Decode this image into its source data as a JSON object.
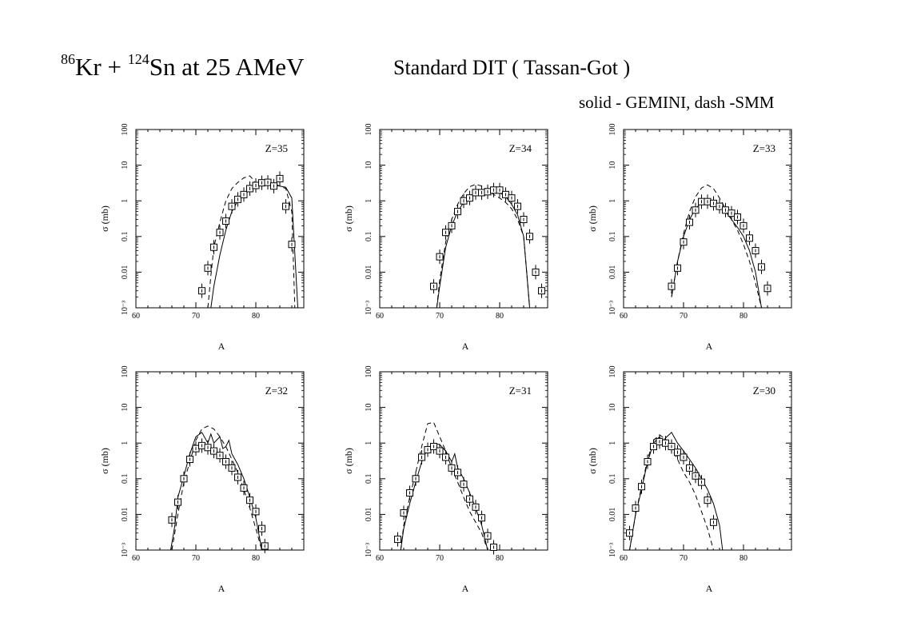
{
  "header": {
    "title_nuc1_mass": "86",
    "title_nuc1": "Kr + ",
    "title_nuc2_mass": "124",
    "title_rest": "Sn at 25 AMeV",
    "subtitle": "Standard DIT ( Tassan-Got )",
    "legend_note": "solid - GEMINI, dash -SMM"
  },
  "chart_data": [
    {
      "type": "line",
      "label": "Z=35",
      "xlabel": "A",
      "ylabel": "σ (mb)",
      "xlim": [
        60,
        88
      ],
      "ylim": [
        0.001,
        100
      ],
      "yscale": "log",
      "x_ticks": [
        "60",
        "70",
        "80"
      ],
      "y_ticks": [
        "10⁻³",
        "0.01",
        "0.1",
        "1",
        "10",
        "100"
      ],
      "markers": [
        [
          71,
          0.003
        ],
        [
          72,
          0.013
        ],
        [
          73,
          0.05
        ],
        [
          74,
          0.13
        ],
        [
          75,
          0.27
        ],
        [
          76,
          0.7
        ],
        [
          77,
          1.1
        ],
        [
          78,
          1.5
        ],
        [
          79,
          2.2
        ],
        [
          80,
          2.7
        ],
        [
          81,
          3.2
        ],
        [
          82,
          3.3
        ],
        [
          83,
          2.6
        ],
        [
          84,
          4.2
        ],
        [
          85,
          0.7
        ],
        [
          86,
          0.06
        ]
      ],
      "solid": [
        [
          72.5,
          0.001
        ],
        [
          73,
          0.004
        ],
        [
          74,
          0.03
        ],
        [
          75,
          0.15
        ],
        [
          76,
          0.5
        ],
        [
          77,
          1.0
        ],
        [
          78,
          1.5
        ],
        [
          79,
          2.0
        ],
        [
          80,
          2.5
        ],
        [
          81,
          2.8
        ],
        [
          82,
          2.9
        ],
        [
          83,
          2.7
        ],
        [
          84,
          2.6
        ],
        [
          85,
          2.4
        ],
        [
          86,
          1.2
        ],
        [
          87,
          0.001
        ]
      ],
      "dash": [
        [
          72,
          0.001
        ],
        [
          72.5,
          0.008
        ],
        [
          73,
          0.05
        ],
        [
          74,
          0.25
        ],
        [
          75,
          1.0
        ],
        [
          76,
          2.2
        ],
        [
          77,
          3.3
        ],
        [
          78,
          4.4
        ],
        [
          79,
          5.0
        ],
        [
          79.5,
          4.0
        ],
        [
          80,
          3.0
        ],
        [
          81,
          2.6
        ],
        [
          82,
          3.0
        ],
        [
          83,
          3.0
        ],
        [
          84,
          2.6
        ],
        [
          85,
          2.2
        ],
        [
          86,
          0.5
        ],
        [
          86.5,
          0.001
        ]
      ]
    },
    {
      "type": "line",
      "label": "Z=34",
      "xlabel": "A",
      "ylabel": "σ (mb)",
      "xlim": [
        60,
        88
      ],
      "ylim": [
        0.001,
        100
      ],
      "yscale": "log",
      "x_ticks": [
        "60",
        "70",
        "80"
      ],
      "y_ticks": [
        "10⁻³",
        "0.01",
        "0.1",
        "1",
        "10",
        "100"
      ],
      "markers": [
        [
          69,
          0.004
        ],
        [
          70,
          0.027
        ],
        [
          71,
          0.13
        ],
        [
          72,
          0.2
        ],
        [
          73,
          0.5
        ],
        [
          74,
          1.0
        ],
        [
          75,
          1.2
        ],
        [
          76,
          1.7
        ],
        [
          77,
          1.7
        ],
        [
          78,
          1.8
        ],
        [
          79,
          2.0
        ],
        [
          80,
          2.0
        ],
        [
          81,
          1.5
        ],
        [
          82,
          1.2
        ],
        [
          83,
          0.7
        ],
        [
          84,
          0.3
        ],
        [
          85,
          0.1
        ],
        [
          86,
          0.01
        ],
        [
          87,
          0.003
        ]
      ],
      "solid": [
        [
          69.5,
          0.001
        ],
        [
          70,
          0.004
        ],
        [
          71,
          0.05
        ],
        [
          72,
          0.2
        ],
        [
          73,
          0.5
        ],
        [
          74,
          0.9
        ],
        [
          75,
          1.3
        ],
        [
          76,
          1.5
        ],
        [
          77,
          1.7
        ],
        [
          78,
          1.9
        ],
        [
          79,
          1.9
        ],
        [
          80,
          1.7
        ],
        [
          81,
          1.3
        ],
        [
          82,
          0.8
        ],
        [
          83,
          0.4
        ],
        [
          84,
          0.1
        ],
        [
          84.5,
          0.01
        ],
        [
          85,
          0.001
        ]
      ],
      "dash": [
        [
          69.5,
          0.001
        ],
        [
          70,
          0.006
        ],
        [
          71,
          0.07
        ],
        [
          72,
          0.3
        ],
        [
          73,
          0.8
        ],
        [
          74,
          1.6
        ],
        [
          75,
          2.5
        ],
        [
          76,
          2.9
        ],
        [
          77,
          2.6
        ],
        [
          78,
          2.0
        ],
        [
          79,
          1.5
        ],
        [
          80,
          1.2
        ],
        [
          81,
          0.9
        ],
        [
          82,
          0.6
        ],
        [
          83,
          0.3
        ],
        [
          84,
          0.1
        ],
        [
          84.5,
          0.01
        ],
        [
          85,
          0.001
        ]
      ]
    },
    {
      "type": "line",
      "label": "Z=33",
      "xlabel": "A",
      "ylabel": "σ (mb)",
      "xlim": [
        60,
        88
      ],
      "ylim": [
        0.001,
        100
      ],
      "yscale": "log",
      "x_ticks": [
        "60",
        "70",
        "80"
      ],
      "y_ticks": [
        "10⁻³",
        "0.01",
        "0.1",
        "1",
        "10",
        "100"
      ],
      "markers": [
        [
          68,
          0.004
        ],
        [
          69,
          0.013
        ],
        [
          70,
          0.07
        ],
        [
          71,
          0.25
        ],
        [
          72,
          0.55
        ],
        [
          73,
          0.95
        ],
        [
          74,
          0.95
        ],
        [
          75,
          0.85
        ],
        [
          76,
          0.7
        ],
        [
          77,
          0.55
        ],
        [
          78,
          0.45
        ],
        [
          79,
          0.35
        ],
        [
          80,
          0.2
        ],
        [
          81,
          0.09
        ],
        [
          82,
          0.04
        ],
        [
          83,
          0.014
        ],
        [
          84,
          0.0035
        ]
      ],
      "solid": [
        [
          68,
          0.002
        ],
        [
          69,
          0.02
        ],
        [
          70,
          0.1
        ],
        [
          71,
          0.3
        ],
        [
          72,
          0.6
        ],
        [
          73,
          0.9
        ],
        [
          74,
          1.0
        ],
        [
          75,
          0.9
        ],
        [
          76,
          0.7
        ],
        [
          77,
          0.5
        ],
        [
          78,
          0.3
        ],
        [
          79,
          0.18
        ],
        [
          80,
          0.1
        ],
        [
          81,
          0.04
        ],
        [
          82,
          0.01
        ],
        [
          83,
          0.001
        ]
      ],
      "dash": [
        [
          68,
          0.002
        ],
        [
          69,
          0.02
        ],
        [
          70,
          0.12
        ],
        [
          71,
          0.5
        ],
        [
          72,
          1.3
        ],
        [
          73,
          2.3
        ],
        [
          74,
          2.8
        ],
        [
          75,
          2.2
        ],
        [
          76,
          1.2
        ],
        [
          77,
          0.6
        ],
        [
          78,
          0.3
        ],
        [
          79,
          0.15
        ],
        [
          80,
          0.06
        ],
        [
          81,
          0.02
        ],
        [
          82,
          0.005
        ],
        [
          83,
          0.001
        ]
      ]
    },
    {
      "type": "line",
      "label": "Z=32",
      "xlabel": "A",
      "ylabel": "σ (mb)",
      "xlim": [
        60,
        88
      ],
      "ylim": [
        0.001,
        100
      ],
      "yscale": "log",
      "x_ticks": [
        "60",
        "70",
        "80"
      ],
      "y_ticks": [
        "10⁻³",
        "0.01",
        "0.1",
        "1",
        "10",
        "100"
      ],
      "markers": [
        [
          66,
          0.007
        ],
        [
          67,
          0.022
        ],
        [
          68,
          0.1
        ],
        [
          69,
          0.35
        ],
        [
          70,
          0.7
        ],
        [
          71,
          0.85
        ],
        [
          72,
          0.75
        ],
        [
          73,
          0.6
        ],
        [
          74,
          0.45
        ],
        [
          75,
          0.3
        ],
        [
          76,
          0.2
        ],
        [
          77,
          0.11
        ],
        [
          78,
          0.055
        ],
        [
          79,
          0.025
        ],
        [
          80,
          0.012
        ],
        [
          81,
          0.004
        ],
        [
          81.5,
          0.0013
        ]
      ],
      "solid": [
        [
          65.8,
          0.001
        ],
        [
          66.5,
          0.005
        ],
        [
          67,
          0.03
        ],
        [
          68,
          0.12
        ],
        [
          69,
          0.5
        ],
        [
          70,
          1.5
        ],
        [
          71,
          2.0
        ],
        [
          72,
          1.0
        ],
        [
          72.5,
          1.8
        ],
        [
          73,
          1.0
        ],
        [
          74,
          1.5
        ],
        [
          74.5,
          0.7
        ],
        [
          75,
          0.8
        ],
        [
          75.5,
          1.2
        ],
        [
          76,
          0.5
        ],
        [
          77,
          0.25
        ],
        [
          78,
          0.1
        ],
        [
          79,
          0.03
        ],
        [
          80,
          0.008
        ],
        [
          81,
          0.001
        ]
      ],
      "dash": [
        [
          66,
          0.001
        ],
        [
          67,
          0.01
        ],
        [
          68,
          0.08
        ],
        [
          69,
          0.3
        ],
        [
          70,
          1.2
        ],
        [
          71,
          2.5
        ],
        [
          72,
          3.0
        ],
        [
          73,
          2.5
        ],
        [
          74,
          1.5
        ],
        [
          75,
          0.8
        ],
        [
          76,
          0.35
        ],
        [
          77,
          0.15
        ],
        [
          78,
          0.05
        ],
        [
          79,
          0.015
        ],
        [
          80,
          0.004
        ],
        [
          81,
          0.001
        ]
      ]
    },
    {
      "type": "line",
      "label": "Z=31",
      "xlabel": "A",
      "ylabel": "σ (mb)",
      "xlim": [
        60,
        88
      ],
      "ylim": [
        0.001,
        100
      ],
      "yscale": "log",
      "x_ticks": [
        "60",
        "70",
        "80"
      ],
      "y_ticks": [
        "10⁻³",
        "0.01",
        "0.1",
        "1",
        "10",
        "100"
      ],
      "markers": [
        [
          63,
          0.002
        ],
        [
          64,
          0.011
        ],
        [
          65,
          0.04
        ],
        [
          66,
          0.1
        ],
        [
          67,
          0.4
        ],
        [
          68,
          0.65
        ],
        [
          69,
          0.8
        ],
        [
          70,
          0.6
        ],
        [
          71,
          0.4
        ],
        [
          72,
          0.2
        ],
        [
          73,
          0.15
        ],
        [
          74,
          0.07
        ],
        [
          75,
          0.027
        ],
        [
          76,
          0.016
        ],
        [
          77,
          0.008
        ],
        [
          78,
          0.0025
        ],
        [
          79,
          0.0012
        ]
      ],
      "solid": [
        [
          63.5,
          0.001
        ],
        [
          64,
          0.004
        ],
        [
          65,
          0.02
        ],
        [
          66,
          0.08
        ],
        [
          67,
          0.3
        ],
        [
          68,
          0.7
        ],
        [
          69,
          1.0
        ],
        [
          70,
          0.9
        ],
        [
          71,
          0.6
        ],
        [
          72,
          0.3
        ],
        [
          72.5,
          0.5
        ],
        [
          73,
          0.2
        ],
        [
          74,
          0.1
        ],
        [
          75,
          0.04
        ],
        [
          76,
          0.015
        ],
        [
          77,
          0.005
        ],
        [
          78,
          0.001
        ]
      ],
      "dash": [
        [
          63.5,
          0.001
        ],
        [
          64,
          0.005
        ],
        [
          65,
          0.03
        ],
        [
          66,
          0.15
        ],
        [
          67,
          0.8
        ],
        [
          68,
          3.5
        ],
        [
          69,
          3.8
        ],
        [
          70,
          1.5
        ],
        [
          71,
          0.6
        ],
        [
          72,
          0.2
        ],
        [
          73,
          0.08
        ],
        [
          74,
          0.03
        ],
        [
          75,
          0.012
        ],
        [
          76,
          0.006
        ],
        [
          77,
          0.003
        ],
        [
          78,
          0.001
        ]
      ]
    },
    {
      "type": "line",
      "label": "Z=30",
      "xlabel": "A",
      "ylabel": "σ (mb)",
      "xlim": [
        60,
        88
      ],
      "ylim": [
        0.001,
        100
      ],
      "yscale": "log",
      "x_ticks": [
        "60",
        "70",
        "80"
      ],
      "y_ticks": [
        "10⁻³",
        "0.01",
        "0.1",
        "1",
        "10",
        "100"
      ],
      "markers": [
        [
          61,
          0.003
        ],
        [
          62,
          0.015
        ],
        [
          63,
          0.06
        ],
        [
          64,
          0.3
        ],
        [
          65,
          0.8
        ],
        [
          66,
          1.1
        ],
        [
          67,
          1.0
        ],
        [
          68,
          0.8
        ],
        [
          69,
          0.55
        ],
        [
          70,
          0.4
        ],
        [
          71,
          0.2
        ],
        [
          72,
          0.12
        ],
        [
          73,
          0.08
        ],
        [
          74,
          0.025
        ],
        [
          75,
          0.006
        ]
      ],
      "solid": [
        [
          61,
          0.001
        ],
        [
          62,
          0.01
        ],
        [
          63,
          0.05
        ],
        [
          64,
          0.3
        ],
        [
          65,
          1.0
        ],
        [
          66,
          1.5
        ],
        [
          66.5,
          1.0
        ],
        [
          67,
          1.4
        ],
        [
          68,
          2.0
        ],
        [
          69,
          1.0
        ],
        [
          70,
          0.6
        ],
        [
          71,
          0.35
        ],
        [
          72,
          0.2
        ],
        [
          73,
          0.1
        ],
        [
          74,
          0.05
        ],
        [
          75,
          0.02
        ],
        [
          76,
          0.005
        ],
        [
          76.5,
          0.001
        ]
      ],
      "dash": [
        [
          61,
          0.001
        ],
        [
          62,
          0.01
        ],
        [
          63,
          0.06
        ],
        [
          64,
          0.35
        ],
        [
          65,
          1.2
        ],
        [
          66,
          1.7
        ],
        [
          67,
          1.3
        ],
        [
          68,
          0.7
        ],
        [
          69,
          0.35
        ],
        [
          70,
          0.15
        ],
        [
          71,
          0.08
        ],
        [
          72,
          0.035
        ],
        [
          73,
          0.012
        ],
        [
          74,
          0.004
        ],
        [
          75,
          0.001
        ]
      ]
    }
  ]
}
